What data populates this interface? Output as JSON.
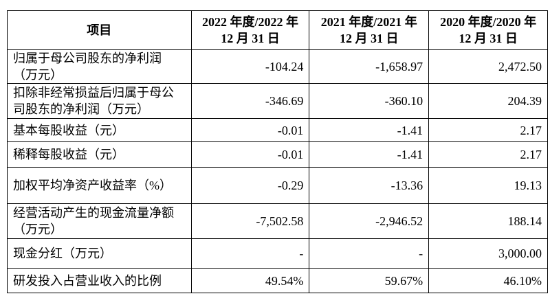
{
  "table": {
    "header": [
      [
        "项目"
      ],
      [
        "2022 年度/2022 年",
        "12 月 31 日"
      ],
      [
        "2021 年度/2021 年",
        "12 月 31 日"
      ],
      [
        "2020 年度/2020 年",
        "12 月 31 日"
      ]
    ],
    "rows": [
      [
        "归属于母公司股东的净利润（万元）",
        "-104.24",
        "-1,658.97",
        "2,472.50"
      ],
      [
        "扣除非经常损益后归属于母公司股东的净利润（万元）",
        "-346.69",
        "-360.10",
        "204.39"
      ],
      [
        "基本每股收益（元）",
        "-0.01",
        "-1.41",
        "2.17"
      ],
      [
        "稀释每股收益（元）",
        "-0.01",
        "-1.41",
        "2.17"
      ],
      [
        "加权平均净资产收益率（%）",
        "-0.29",
        "-13.36",
        "19.13"
      ],
      [
        "经营活动产生的现金流量净额（万元）",
        "-7,502.58",
        "-2,946.52",
        "188.14"
      ],
      [
        "现金分红（万元）",
        "-",
        "-",
        "3,000.00"
      ],
      [
        "研发投入占营业收入的比例",
        "49.54%",
        "59.67%",
        "46.10%"
      ]
    ]
  }
}
